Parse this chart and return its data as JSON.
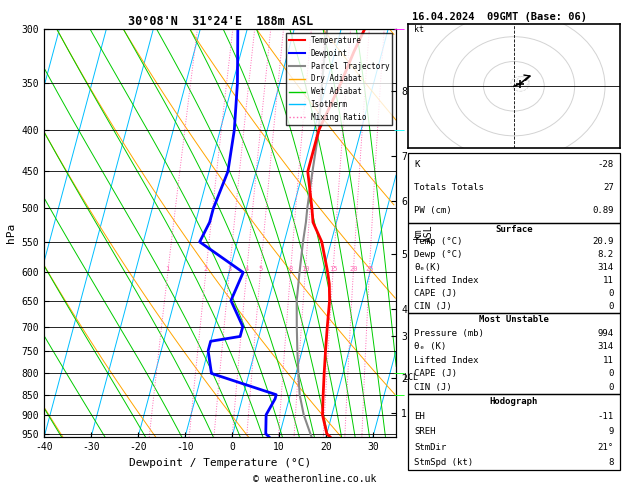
{
  "title_left": "30°08'N  31°24'E  188m ASL",
  "title_right": "16.04.2024  09GMT (Base: 06)",
  "xlabel": "Dewpoint / Temperature (°C)",
  "ylabel_left": "hPa",
  "pressure_levels": [
    300,
    350,
    400,
    450,
    500,
    550,
    600,
    650,
    700,
    750,
    800,
    850,
    900,
    950
  ],
  "pressure_ticks": [
    300,
    350,
    400,
    450,
    500,
    550,
    600,
    650,
    700,
    750,
    800,
    850,
    900,
    950
  ],
  "xlim": [
    -40,
    35
  ],
  "pmin": 300,
  "pmax": 960,
  "km_labels": [
    8,
    7,
    6,
    5,
    4,
    3,
    2,
    1
  ],
  "km_pressures": [
    358,
    430,
    490,
    570,
    665,
    720,
    810,
    895
  ],
  "mixing_labels": [
    "1",
    "2",
    "3",
    "4",
    "5",
    "8",
    "10",
    "15",
    "20",
    "25"
  ],
  "mixing_vals": [
    1,
    2,
    3,
    4,
    5,
    8,
    10,
    15,
    20,
    25
  ],
  "mixing_label_pressure": 600,
  "lcl_pressure": 810,
  "background_color": "#ffffff",
  "isotherm_color": "#00bfff",
  "dry_adiabat_color": "#ffa500",
  "wet_adiabat_color": "#00cc00",
  "mixing_ratio_color": "#ff69b4",
  "temp_color": "#ff0000",
  "dewp_color": "#0000ff",
  "parcel_color": "#888888",
  "temperature_profile": {
    "pressure": [
      300,
      320,
      350,
      400,
      450,
      500,
      520,
      550,
      600,
      620,
      650,
      700,
      750,
      800,
      850,
      900,
      950,
      960
    ],
    "temp": [
      5,
      4,
      3,
      1,
      1,
      4,
      5,
      8,
      11,
      12,
      13,
      14,
      15,
      16,
      17,
      18,
      20,
      21
    ]
  },
  "dewpoint_profile": {
    "pressure": [
      300,
      350,
      400,
      450,
      500,
      520,
      550,
      600,
      650,
      700,
      720,
      730,
      750,
      800,
      850,
      860,
      900,
      950,
      960
    ],
    "temp": [
      -22,
      -19,
      -17,
      -16,
      -17,
      -17,
      -18,
      -7,
      -8,
      -4,
      -4,
      -10,
      -10,
      -8,
      7,
      7,
      6,
      7,
      8
    ]
  },
  "parcel_profile": {
    "pressure": [
      300,
      350,
      400,
      450,
      500,
      520,
      550,
      600,
      650,
      700,
      750,
      800,
      850,
      900,
      950,
      960
    ],
    "temp": [
      -3,
      -1,
      1,
      2,
      3,
      3.5,
      4,
      5,
      6,
      7.5,
      9,
      10.5,
      12,
      14,
      16.5,
      17
    ]
  },
  "info_table": {
    "K": "-28",
    "Totals Totals": "27",
    "PW (cm)": "0.89",
    "Surface_Temp": "20.9",
    "Surface_Dewp": "8.2",
    "Surface_theta_e": "314",
    "Surface_Lifted": "11",
    "Surface_CAPE": "0",
    "Surface_CIN": "0",
    "MU_Pressure": "994",
    "MU_theta_e": "314",
    "MU_Lifted": "11",
    "MU_CAPE": "0",
    "MU_CIN": "0",
    "Hodo_EH": "-11",
    "Hodo_SREH": "9",
    "Hodo_StmDir": "21°",
    "Hodo_StmSpd": "8"
  },
  "copyright": "© weatheronline.co.uk",
  "font_family": "monospace",
  "skew": 20
}
